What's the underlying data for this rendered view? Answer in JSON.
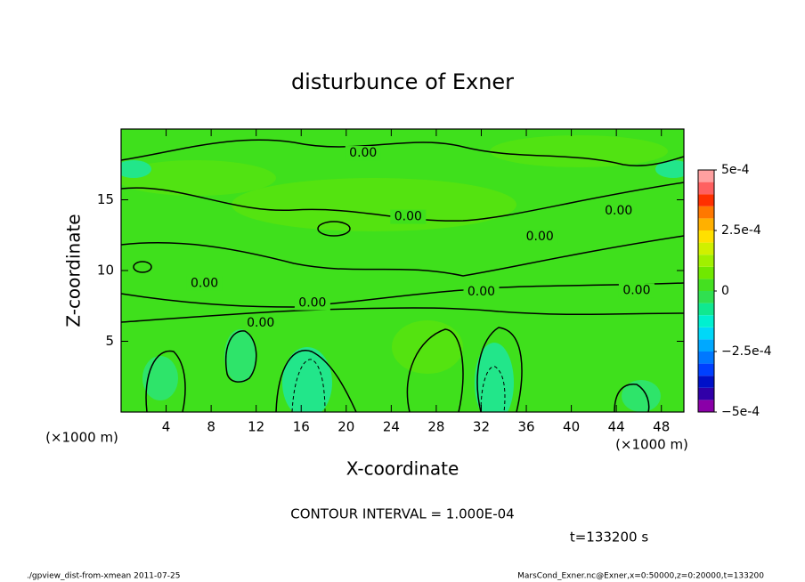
{
  "chart_data": {
    "type": "contour",
    "title": "disturbunce of Exner",
    "x_label": "X-coordinate",
    "y_label": "Z-coordinate",
    "x_unit": "(×1000 m)",
    "xlim": [
      0,
      50
    ],
    "ylim": [
      0,
      20
    ],
    "xticks": [
      4,
      8,
      12,
      16,
      20,
      24,
      28,
      32,
      36,
      40,
      44,
      48
    ],
    "yticks": [
      5,
      10,
      15
    ],
    "clim": [
      -0.0005,
      0.0005
    ],
    "colorbar_ticks": [
      {
        "value": 0.0005,
        "label": "5e-4"
      },
      {
        "value": 0.00025,
        "label": "2.5e-4"
      },
      0,
      {
        "value": -0.00025,
        "label": "−2.5e-4"
      },
      {
        "value": -0.0005,
        "label": "−5e-4"
      }
    ],
    "colorbar_colors": [
      "#8a00a8",
      "#3000a8",
      "#0010c8",
      "#0040ff",
      "#0078ff",
      "#00a8ff",
      "#00d8f8",
      "#00f0d0",
      "#10e890",
      "#30e050",
      "#44e020",
      "#70e800",
      "#a0f000",
      "#d0f000",
      "#ffe000",
      "#ffb000",
      "#ff7800",
      "#ff3000",
      "#ff6060",
      "#ffa0a0"
    ],
    "contour_labels": [
      {
        "text": "0.00",
        "x": 21.5,
        "y": 18.3
      },
      {
        "text": "0.00",
        "x": 25.5,
        "y": 13.8
      },
      {
        "text": "0.00",
        "x": 44.2,
        "y": 14.2
      },
      {
        "text": "0.00",
        "x": 37.2,
        "y": 12.4
      },
      {
        "text": "0.00",
        "x": 7.4,
        "y": 9.1
      },
      {
        "text": "0.00",
        "x": 17.0,
        "y": 7.7
      },
      {
        "text": "0.00",
        "x": 32.0,
        "y": 8.5
      },
      {
        "text": "0.00",
        "x": 45.8,
        "y": 8.6
      },
      {
        "text": "0.00",
        "x": 12.4,
        "y": 6.3
      }
    ],
    "contour_interval_text": "CONTOUR INTERVAL = 1.000E-04",
    "time_text": "t=133200 s",
    "footer_left": "./gpview_dist-from-xmean  2011-07-25",
    "footer_right": "MarsCond_Exner.nc@Exner,x=0:50000,z=0:20000,t=133200"
  }
}
